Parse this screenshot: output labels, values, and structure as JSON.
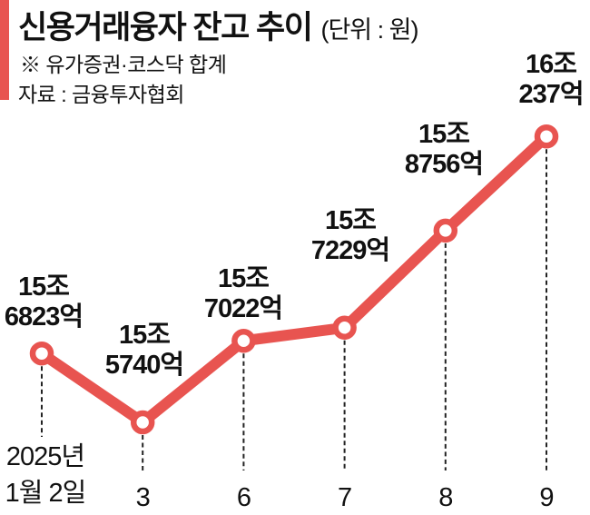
{
  "header": {
    "title": "신용거래융자 잔고 추이",
    "unit": "(단위 : 원)",
    "note": "※ 유가증권·코스닥 합계",
    "source": "자료 : 금융투자협회"
  },
  "colors": {
    "accent": "#E85450",
    "text": "#111111",
    "dash": "#222222",
    "marker_fill": "#FFFFFF"
  },
  "chart_data": {
    "type": "line",
    "title": "신용거래융자 잔고 추이",
    "unit": "원",
    "note": "유가증권·코스닥 합계",
    "source": "금융투자협회",
    "x": [
      [
        "2025년",
        "1월 2일"
      ],
      [
        "3"
      ],
      [
        "6"
      ],
      [
        "7"
      ],
      [
        "8"
      ],
      [
        "9"
      ]
    ],
    "values_eok": [
      156823,
      155740,
      157022,
      157229,
      158756,
      160237
    ],
    "point_labels": [
      [
        "15조",
        "6823억"
      ],
      [
        "15조",
        "5740억"
      ],
      [
        "15조",
        "7022억"
      ],
      [
        "15조",
        "7229억"
      ],
      [
        "15조",
        "8756억"
      ],
      [
        "16조",
        "237억"
      ]
    ],
    "ylim_eok": [
      155740,
      160237
    ],
    "grid": false,
    "legend": false,
    "marker": "open-circle",
    "dashed_droplines": true
  }
}
